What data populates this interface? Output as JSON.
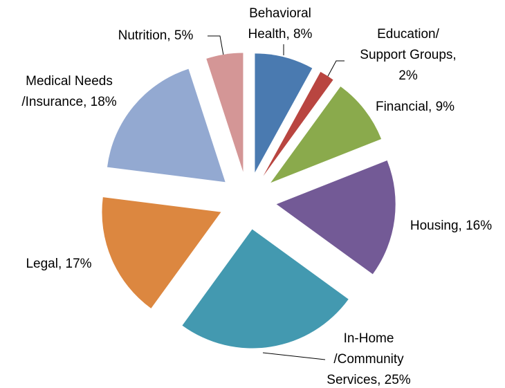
{
  "chart_data": {
    "type": "pie",
    "values": [
      8,
      2,
      9,
      16,
      25,
      17,
      18,
      5
    ],
    "value_labels": [
      "Behavioral\nHealth, 8%",
      "Education/\nSupport Groups,\n2%",
      "Financial, 9%",
      "Housing, 16%",
      "In-Home\n/Community\nServices, 25%",
      "Legal, 17%",
      "Medical Needs\n/Insurance, 18%",
      "Nutrition, 5%"
    ],
    "colors": [
      "#4a7ab0",
      "#b94540",
      "#8aaa4c",
      "#735a96",
      "#4399b0",
      "#dc8740",
      "#93a9d1",
      "#d49696"
    ],
    "exploded": true
  }
}
